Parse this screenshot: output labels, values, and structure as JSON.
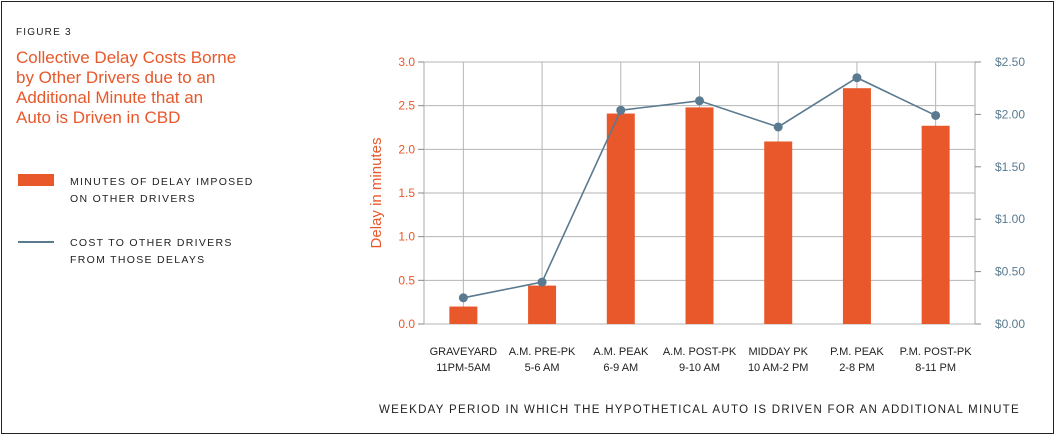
{
  "figure_label": "FIGURE 3",
  "title_lines": [
    "Collective Delay Costs Borne",
    "by Other Drivers due to an",
    "Additional Minute that an",
    "Auto is Driven in CBD"
  ],
  "legend": {
    "bars": [
      "MINUTES OF DELAY IMPOSED",
      "ON OTHER DRIVERS"
    ],
    "line": [
      "COST TO OTHER DRIVERS",
      "FROM THOSE DELAYS"
    ]
  },
  "colors": {
    "bar": "#e8582a",
    "line": "#5a7a90",
    "left_axis": "#e8582a",
    "right_axis": "#5a7a90"
  },
  "chart_data": {
    "type": "bar",
    "categories": [
      [
        "GRAVEYARD",
        "11PM-5AM"
      ],
      [
        "A.M. PRE-PK",
        "5-6 AM"
      ],
      [
        "A.M. PEAK",
        "6-9 AM"
      ],
      [
        "A.M. POST-PK",
        "9-10 AM"
      ],
      [
        "MIDDAY PK",
        "10 AM-2 PM"
      ],
      [
        "P.M. PEAK",
        "2-8 PM"
      ],
      [
        "P.M. POST-PK",
        "8-11 PM"
      ]
    ],
    "series": [
      {
        "name": "MINUTES OF DELAY IMPOSED ON OTHER DRIVERS",
        "type": "bar",
        "axis": "left",
        "values": [
          0.2,
          0.44,
          2.41,
          2.48,
          2.09,
          2.7,
          2.27
        ]
      },
      {
        "name": "COST TO OTHER DRIVERS FROM THOSE DELAYS",
        "type": "line",
        "axis": "right",
        "values": [
          0.25,
          0.4,
          2.04,
          2.13,
          1.88,
          2.35,
          1.99
        ]
      }
    ],
    "ylabel": "Delay in minutes",
    "xlabel": "WEEKDAY PERIOD IN WHICH THE HYPOTHETICAL AUTO IS DRIVEN FOR AN ADDITIONAL MINUTE",
    "ylim": [
      0,
      3.0
    ],
    "y_ticks": [
      "0.0",
      "0.5",
      "1.0",
      "1.5",
      "2.0",
      "2.5",
      "3.0"
    ],
    "y2lim": [
      0,
      2.5
    ],
    "y2_ticks": [
      "$0.00",
      "$0.50",
      "$1.00",
      "$1.50",
      "$2.00",
      "$2.50"
    ],
    "grid": true
  }
}
